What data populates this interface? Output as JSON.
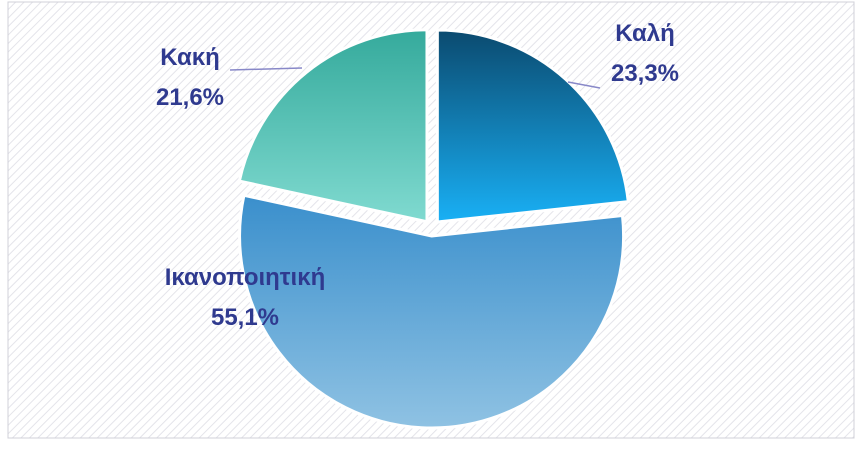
{
  "chart_data": {
    "type": "pie",
    "categories": [
      "Καλή",
      "Ικανοποιητική",
      "Κακή"
    ],
    "values": [
      23.3,
      55.1,
      21.6
    ],
    "value_labels": [
      "23,3%",
      "55,1%",
      "21,6%"
    ],
    "colors": [
      [
        "#0b4a6f",
        "#19b0f5"
      ],
      [
        "#3a8fcc",
        "#8fc2e3"
      ],
      [
        "#35aa9c",
        "#80dad0"
      ]
    ],
    "exploded": true
  }
}
